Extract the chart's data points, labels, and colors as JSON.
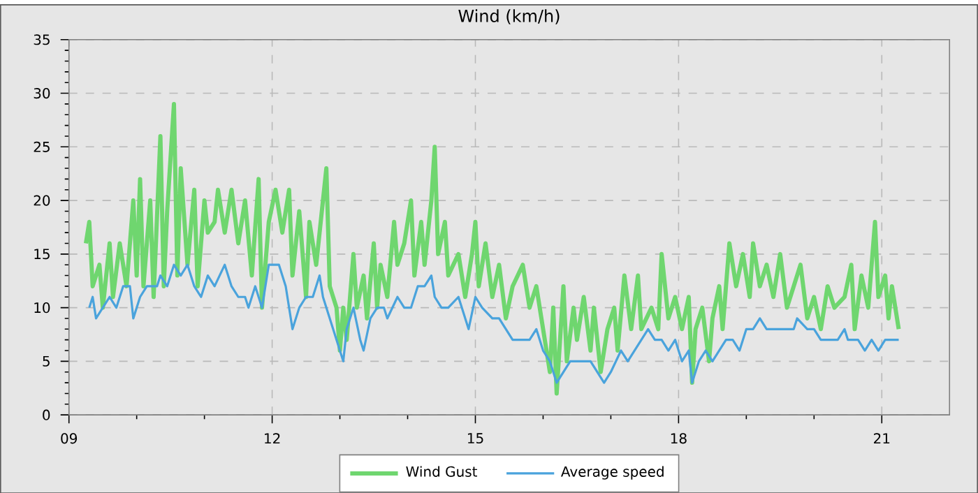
{
  "chart_data": {
    "type": "line",
    "title": "Wind (km/h)",
    "xlim": [
      9,
      22
    ],
    "xticks": [
      {
        "value": 9,
        "label": "09"
      },
      {
        "value": 12,
        "label": "12"
      },
      {
        "value": 15,
        "label": "15"
      },
      {
        "value": 18,
        "label": "18"
      },
      {
        "value": 21,
        "label": "21"
      }
    ],
    "ylim": [
      0,
      35
    ],
    "yticks": [
      0,
      5,
      10,
      15,
      20,
      25,
      30,
      35
    ],
    "grid": true,
    "legend": "bottom",
    "marker": "none",
    "line_style": "solid",
    "series": [
      {
        "name": "Wind Gust",
        "color": "#6fd66f",
        "x": [
          9.25,
          9.3,
          9.35,
          9.45,
          9.5,
          9.6,
          9.65,
          9.75,
          9.85,
          9.95,
          10.0,
          10.05,
          10.1,
          10.2,
          10.25,
          10.35,
          10.4,
          10.45,
          10.55,
          10.6,
          10.65,
          10.75,
          10.85,
          10.9,
          11.0,
          11.05,
          11.15,
          11.2,
          11.3,
          11.4,
          11.5,
          11.6,
          11.7,
          11.8,
          11.85,
          11.95,
          12.05,
          12.15,
          12.25,
          12.3,
          12.4,
          12.5,
          12.55,
          12.65,
          12.75,
          12.8,
          12.85,
          12.95,
          13.0,
          13.05,
          13.1,
          13.2,
          13.25,
          13.35,
          13.4,
          13.5,
          13.55,
          13.6,
          13.7,
          13.8,
          13.85,
          13.95,
          14.05,
          14.1,
          14.2,
          14.25,
          14.35,
          14.4,
          14.45,
          14.55,
          14.6,
          14.75,
          14.85,
          14.95,
          15.0,
          15.05,
          15.15,
          15.25,
          15.35,
          15.45,
          15.55,
          15.7,
          15.8,
          15.9,
          16.0,
          16.1,
          16.15,
          16.2,
          16.3,
          16.35,
          16.45,
          16.5,
          16.6,
          16.7,
          16.75,
          16.85,
          16.95,
          17.05,
          17.1,
          17.2,
          17.3,
          17.4,
          17.45,
          17.6,
          17.7,
          17.75,
          17.85,
          17.95,
          18.05,
          18.15,
          18.2,
          18.25,
          18.35,
          18.45,
          18.5,
          18.6,
          18.65,
          18.75,
          18.85,
          18.95,
          19.05,
          19.1,
          19.2,
          19.3,
          19.4,
          19.5,
          19.6,
          19.7,
          19.8,
          19.9,
          20.0,
          20.1,
          20.2,
          20.3,
          20.45,
          20.55,
          20.6,
          20.7,
          20.8,
          20.9,
          20.95,
          21.05,
          21.1,
          21.15,
          21.25
        ],
        "values": [
          16,
          18,
          12,
          14,
          10,
          16,
          11,
          16,
          12,
          20,
          13,
          22,
          12,
          20,
          11,
          26,
          12,
          19,
          29,
          13,
          23,
          14,
          21,
          12,
          20,
          17,
          18,
          21,
          17,
          21,
          16,
          20,
          13,
          22,
          10,
          18,
          21,
          17,
          21,
          13,
          19,
          11,
          18,
          14,
          20,
          23,
          12,
          10,
          6,
          10,
          7,
          15,
          10,
          13,
          9,
          16,
          10,
          14,
          11,
          18,
          14,
          16,
          20,
          13,
          18,
          14,
          20,
          25,
          15,
          18,
          13,
          15,
          11,
          15,
          18,
          12,
          16,
          11,
          14,
          9,
          12,
          14,
          10,
          12,
          8,
          4,
          10,
          2,
          12,
          5,
          10,
          7,
          11,
          6,
          10,
          4,
          8,
          10,
          6,
          13,
          8,
          13,
          8,
          10,
          8,
          15,
          9,
          11,
          8,
          11,
          3,
          8,
          10,
          5,
          9,
          12,
          8,
          16,
          12,
          15,
          11,
          16,
          12,
          14,
          11,
          15,
          10,
          12,
          14,
          9,
          11,
          8,
          12,
          10,
          11,
          14,
          8,
          13,
          10,
          18,
          11,
          13,
          9,
          12,
          8
        ]
      },
      {
        "name": "Average speed",
        "color": "#4aa3dc",
        "x": [
          9.3,
          9.35,
          9.4,
          9.5,
          9.6,
          9.7,
          9.8,
          9.9,
          9.95,
          10.05,
          10.15,
          10.3,
          10.35,
          10.45,
          10.55,
          10.65,
          10.75,
          10.85,
          10.95,
          11.05,
          11.15,
          11.3,
          11.4,
          11.5,
          11.6,
          11.65,
          11.75,
          11.85,
          11.95,
          12.1,
          12.2,
          12.3,
          12.4,
          12.5,
          12.6,
          12.7,
          12.75,
          12.9,
          13.0,
          13.05,
          13.1,
          13.2,
          13.3,
          13.35,
          13.45,
          13.55,
          13.65,
          13.7,
          13.85,
          13.95,
          14.05,
          14.15,
          14.25,
          14.35,
          14.4,
          14.5,
          14.6,
          14.75,
          14.9,
          15.0,
          15.1,
          15.25,
          15.35,
          15.45,
          15.55,
          15.65,
          15.8,
          15.9,
          16.0,
          16.1,
          16.2,
          16.3,
          16.4,
          16.5,
          16.7,
          16.8,
          16.9,
          17.0,
          17.15,
          17.25,
          17.35,
          17.45,
          17.55,
          17.65,
          17.75,
          17.85,
          17.95,
          18.05,
          18.15,
          18.2,
          18.3,
          18.4,
          18.5,
          18.6,
          18.7,
          18.8,
          18.9,
          19.0,
          19.1,
          19.2,
          19.3,
          19.5,
          19.7,
          19.75,
          19.9,
          20.0,
          20.1,
          20.2,
          20.35,
          20.45,
          20.5,
          20.65,
          20.75,
          20.85,
          20.95,
          21.05,
          21.1,
          21.15,
          21.25
        ],
        "values": [
          10,
          11,
          9,
          10,
          11,
          10,
          12,
          12,
          9,
          11,
          12,
          12,
          13,
          12,
          14,
          13,
          14,
          12,
          11,
          13,
          12,
          14,
          12,
          11,
          11,
          10,
          12,
          10,
          14,
          14,
          12,
          8,
          10,
          11,
          11,
          13,
          11,
          8,
          6,
          5,
          8,
          10,
          7,
          6,
          9,
          10,
          10,
          9,
          11,
          10,
          10,
          12,
          12,
          13,
          11,
          10,
          10,
          11,
          8,
          11,
          10,
          9,
          9,
          8,
          7,
          7,
          7,
          8,
          6,
          5,
          3,
          4,
          5,
          5,
          5,
          4,
          3,
          4,
          6,
          5,
          6,
          7,
          8,
          7,
          7,
          6,
          7,
          5,
          6,
          3,
          5,
          6,
          5,
          6,
          7,
          7,
          6,
          8,
          8,
          9,
          8,
          8,
          8,
          9,
          8,
          8,
          7,
          7,
          7,
          8,
          7,
          7,
          6,
          7,
          6,
          7,
          7,
          7,
          7
        ]
      }
    ]
  }
}
